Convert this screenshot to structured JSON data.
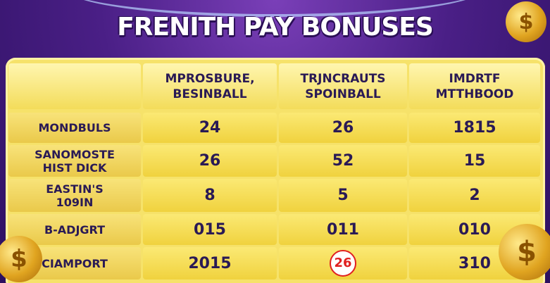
{
  "header": {
    "title": "FRENITH PAY BONUSES"
  },
  "table": {
    "columns": [
      [
        "MPROSBURE,",
        "BESINBALL"
      ],
      [
        "TRJNCRAUTS",
        "SPOINBALL"
      ],
      [
        "IMDRTF",
        "MTTHBOOD"
      ]
    ],
    "rows": [
      {
        "label": [
          "MONDBULS"
        ],
        "cells": [
          "24",
          "26",
          "1815"
        ]
      },
      {
        "label": [
          "SANOMOSTE",
          "HIST DICK"
        ],
        "cells": [
          "26",
          "52",
          "15"
        ]
      },
      {
        "label": [
          "EASTIN'S",
          "109IN"
        ],
        "cells": [
          "8",
          "5",
          "2"
        ]
      },
      {
        "label": [
          "B-ADJGRT"
        ],
        "cells": [
          "015",
          "011",
          "010"
        ]
      },
      {
        "label": [
          "CIAMPORT"
        ],
        "cells": [
          "2015",
          "26",
          "310"
        ]
      }
    ]
  }
}
